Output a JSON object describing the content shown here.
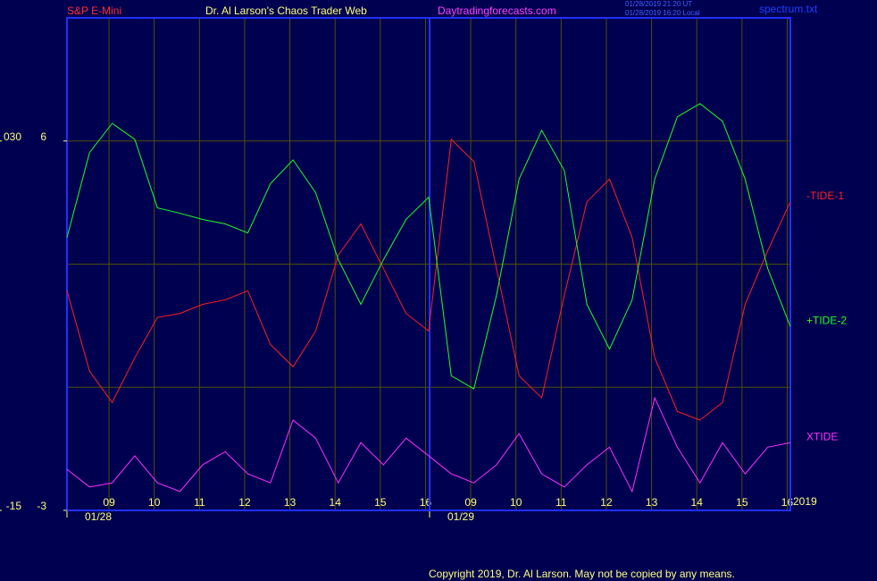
{
  "header": {
    "left": "S&P E-Mini",
    "center": "Dr. Al Larson's Chaos Trader Web",
    "site": "Daytradingforecasts.com",
    "stamp_ut": "01/28/2019 21:20 UT",
    "stamp_local": "01/28/2019 16:20 Local",
    "file": "spectrum.txt"
  },
  "footer": "Copyright 2019, Dr. Al Larson. May not be copied by any means.",
  "chart_data": {
    "type": "line",
    "x": [
      0,
      0.5,
      1,
      1.5,
      2,
      2.5,
      3,
      3.5,
      4,
      4.5,
      5,
      5.5,
      6,
      6.5,
      7,
      7.5,
      8,
      8.5,
      9,
      9.5,
      10,
      10.5,
      11,
      11.5,
      12,
      12.5,
      13,
      13.5,
      14,
      14.5,
      15,
      15.5,
      16
    ],
    "xlim": [
      0,
      16
    ],
    "xticks": [
      {
        "value": 0.93,
        "label": "09"
      },
      {
        "value": 1.93,
        "label": "10"
      },
      {
        "value": 2.93,
        "label": "11"
      },
      {
        "value": 3.93,
        "label": "12"
      },
      {
        "value": 4.93,
        "label": "13"
      },
      {
        "value": 5.93,
        "label": "14"
      },
      {
        "value": 6.93,
        "label": "15"
      },
      {
        "value": 7.93,
        "label": "16"
      },
      {
        "value": 8.93,
        "label": "09"
      },
      {
        "value": 9.93,
        "label": "10"
      },
      {
        "value": 10.93,
        "label": "11"
      },
      {
        "value": 11.93,
        "label": "12"
      },
      {
        "value": 12.93,
        "label": "13"
      },
      {
        "value": 13.93,
        "label": "14"
      },
      {
        "value": 14.93,
        "label": "15"
      },
      {
        "value": 15.93,
        "label": "16"
      }
    ],
    "dates": [
      {
        "value": 0,
        "label": "01/28"
      },
      {
        "value": 8.02,
        "label": "01/29"
      }
    ],
    "year": "2019",
    "ylim": [
      -3,
      9
    ],
    "yticks": [
      -3,
      6
    ],
    "ygrid": [
      0,
      3,
      6
    ],
    "y2lim": [
      -15,
      45
    ],
    "y2ticks": [
      {
        "value": -15,
        "label": "-15"
      },
      {
        "value": 30,
        "label": "030"
      }
    ],
    "series": [
      {
        "name": "-TIDE-1",
        "color": "#ff2020",
        "values": [
          2.35,
          0.39,
          -0.37,
          0.72,
          1.7,
          1.8,
          2.02,
          2.13,
          2.35,
          1.04,
          0.5,
          1.37,
          3.22,
          3.98,
          2.89,
          1.8,
          1.37,
          6.04,
          5.5,
          2.89,
          0.28,
          -0.26,
          2.24,
          4.52,
          5.07,
          3.65,
          0.72,
          -0.59,
          -0.8,
          -0.37,
          2.02,
          3.33,
          4.52
        ]
      },
      {
        "name": "+TIDE-2",
        "color": "#20ff20",
        "values": [
          3.65,
          5.72,
          6.43,
          6.04,
          4.37,
          4.24,
          4.09,
          3.98,
          3.76,
          4.96,
          5.54,
          4.74,
          3.11,
          2.02,
          3.11,
          4.09,
          4.63,
          0.28,
          -0.04,
          2.24,
          5.07,
          6.26,
          5.28,
          2.02,
          0.93,
          2.13,
          5.07,
          6.59,
          6.91,
          6.48,
          5.07,
          2.89,
          1.48
        ]
      },
      {
        "name": "XTIDE",
        "color": "#ff30ff",
        "values": [
          -2.0,
          -2.43,
          -2.33,
          -1.67,
          -2.33,
          -2.54,
          -1.89,
          -1.57,
          -2.11,
          -2.33,
          -0.8,
          -1.24,
          -2.33,
          -1.35,
          -1.89,
          -1.24,
          -1.67,
          -2.11,
          -2.33,
          -1.89,
          -1.13,
          -2.11,
          -2.43,
          -1.89,
          -1.46,
          -2.54,
          -0.26,
          -1.46,
          -2.33,
          -1.35,
          -2.11,
          -1.46,
          -1.35
        ]
      }
    ]
  }
}
